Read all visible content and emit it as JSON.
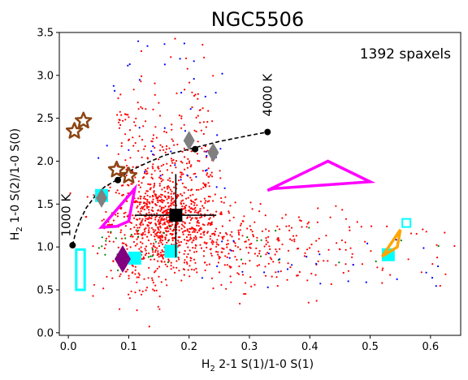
{
  "chart_data": {
    "type": "scatter",
    "title": "NGC5506",
    "xlabel": "H",
    "xlabel_sub": "2",
    "xlabel_rest": " 2-1 S(1)/1-0 S(1)",
    "ylabel": "H",
    "ylabel_sub": "2",
    "ylabel_rest": " 1-0 S(2)/1-0 S(0)",
    "xlim": [
      -0.015,
      0.65
    ],
    "ylim": [
      -0.03,
      3.5
    ],
    "xticks": [
      0.0,
      0.1,
      0.2,
      0.3,
      0.4,
      0.5,
      0.6
    ],
    "xtick_labels": [
      "0.0",
      "0.1",
      "0.2",
      "0.3",
      "0.4",
      "0.5",
      "0.6"
    ],
    "yticks": [
      0.0,
      0.5,
      1.0,
      1.5,
      2.0,
      2.5,
      3.0,
      3.5
    ],
    "ytick_labels": [
      "0.0",
      "0.5",
      "1.0",
      "1.5",
      "2.0",
      "2.5",
      "3.0",
      "3.5"
    ],
    "grid": false,
    "annotation": "1392 spaxels",
    "thermal_curve": {
      "x": [
        0.007,
        0.012,
        0.02,
        0.03,
        0.045,
        0.06,
        0.08,
        0.1,
        0.13,
        0.16,
        0.2,
        0.25,
        0.3,
        0.33
      ],
      "y": [
        1.02,
        1.17,
        1.32,
        1.46,
        1.6,
        1.7,
        1.78,
        1.88,
        1.98,
        2.07,
        2.14,
        2.23,
        2.3,
        2.34
      ],
      "markers": [
        {
          "x": 0.007,
          "y": 1.02
        },
        {
          "x": 0.082,
          "y": 1.78
        },
        {
          "x": 0.21,
          "y": 2.14
        },
        {
          "x": 0.33,
          "y": 2.34
        }
      ],
      "label_low": "1000 K",
      "label_high": "4000 K"
    },
    "scatter_red": {
      "center_x": 0.16,
      "center_y": 1.25,
      "count": 1392
    },
    "median": {
      "x": 0.178,
      "y": 1.37,
      "xerr": [
        0.11,
        0.245
      ],
      "yerr": [
        0.88,
        1.85
      ]
    },
    "models": {
      "gray_diamonds": [
        {
          "x": 0.055,
          "y": 1.57
        },
        {
          "x": 0.2,
          "y": 2.24
        },
        {
          "x": 0.24,
          "y": 2.1
        }
      ],
      "purple_diamond": {
        "x": 0.09,
        "y": 0.86
      },
      "brown_stars": [
        {
          "x": 0.01,
          "y": 2.35
        },
        {
          "x": 0.025,
          "y": 2.47
        },
        {
          "x": 0.08,
          "y": 1.9
        },
        {
          "x": 0.1,
          "y": 1.83
        }
      ],
      "cyan_squares": [
        {
          "x": 0.055,
          "y": 1.6
        },
        {
          "x": 0.11,
          "y": 0.87
        },
        {
          "x": 0.17,
          "y": 0.95
        },
        {
          "x": 0.53,
          "y": 0.91
        }
      ],
      "cyan_open_rect": {
        "x": [
          0.013,
          0.027
        ],
        "y": [
          0.5,
          0.97
        ]
      },
      "cyan_open_square": {
        "x": 0.56,
        "y": 1.28
      },
      "magenta_polygons": [
        {
          "x": [
            0.055,
            0.11,
            0.1,
            0.08
          ],
          "y": [
            1.23,
            1.68,
            1.3,
            1.24
          ]
        },
        {
          "x": [
            0.33,
            0.43,
            0.5,
            0.34
          ],
          "y": [
            1.66,
            2.0,
            1.76,
            1.68
          ]
        }
      ],
      "orange_polygon": {
        "x": [
          0.52,
          0.55,
          0.545
        ],
        "y": [
          0.89,
          1.2,
          1.0
        ]
      }
    },
    "colors": {
      "red": "#ff0000",
      "blue": "#0000ff",
      "green": "#008000",
      "gray": "#808080",
      "purple": "#800080",
      "brown": "#8b4513",
      "cyan": "#00ffff",
      "magenta": "#ff00ff",
      "orange": "#ffa500",
      "black": "#000000"
    }
  }
}
